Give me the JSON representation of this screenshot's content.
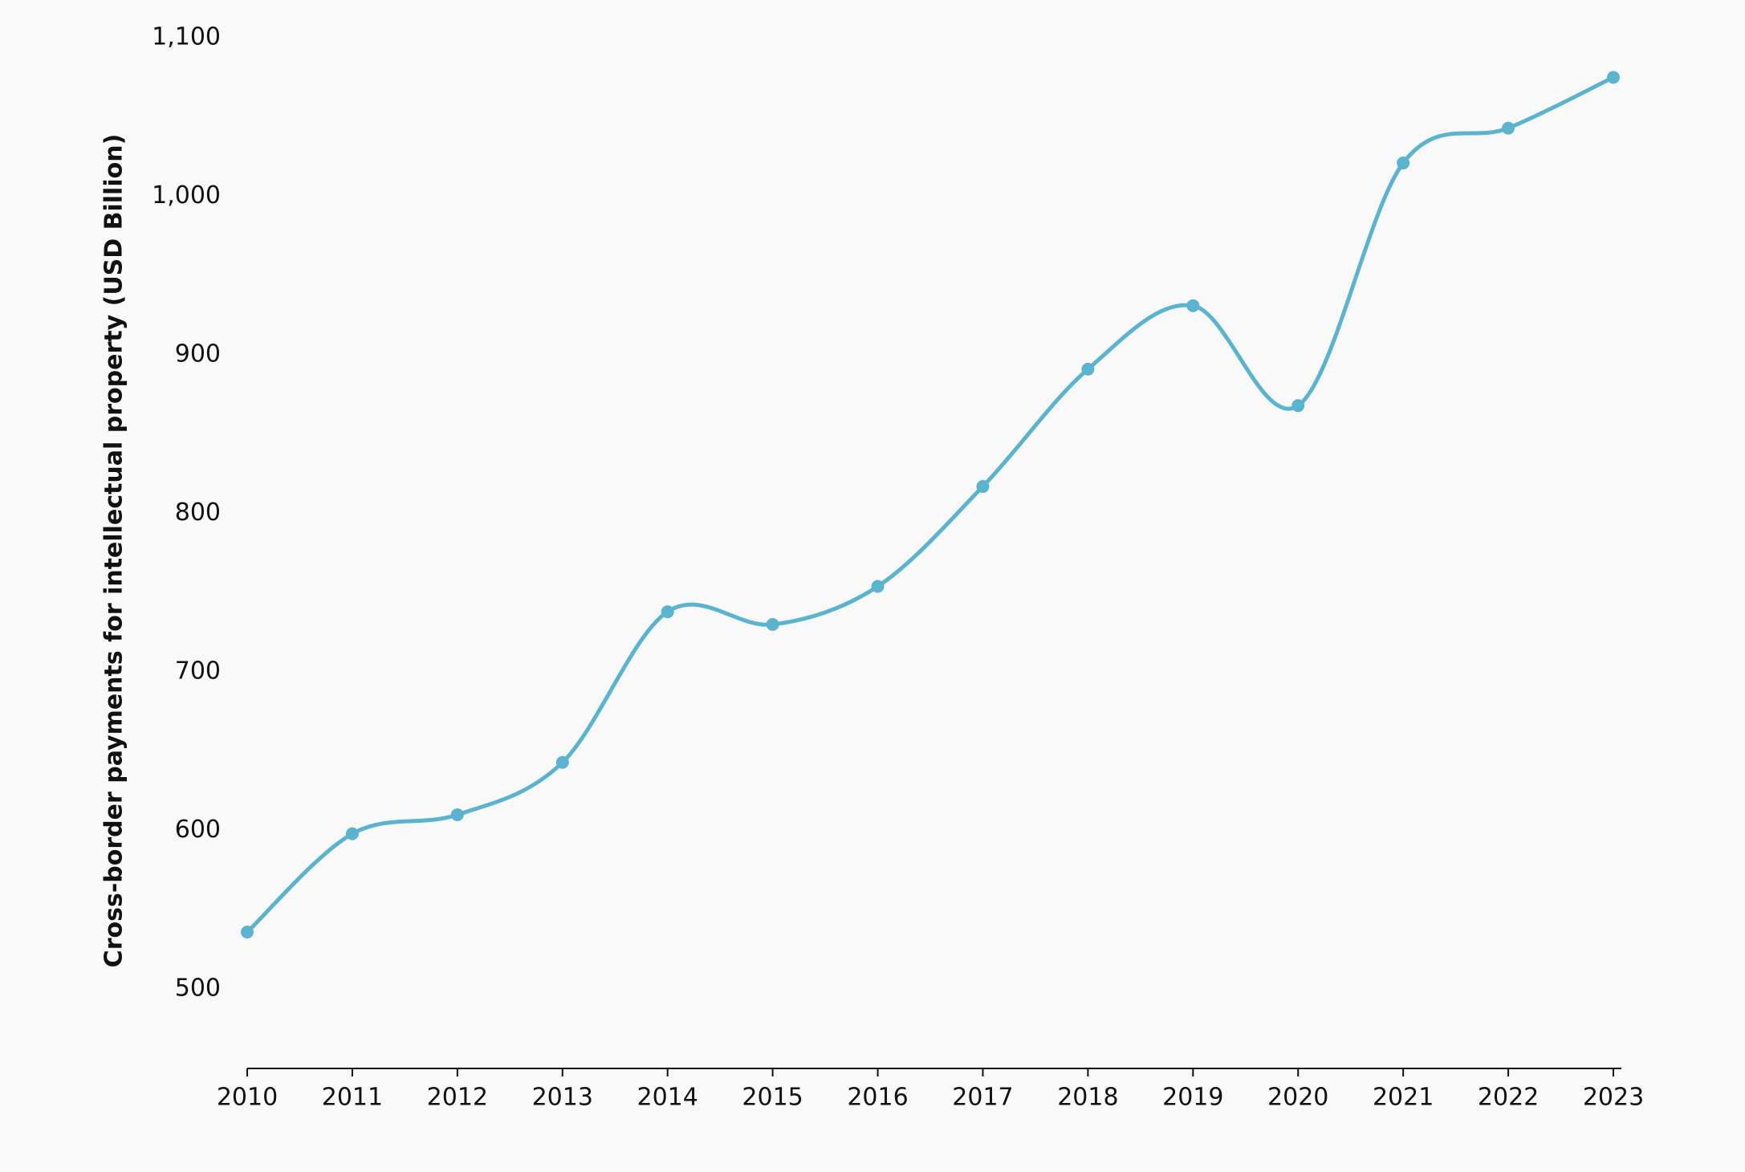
{
  "chart_data": {
    "type": "line",
    "y_label": "Cross-border payments for intellectual property (USD Billion)",
    "x": [
      2010,
      2011,
      2012,
      2013,
      2014,
      2015,
      2016,
      2017,
      2018,
      2019,
      2020,
      2021,
      2022,
      2023
    ],
    "series": [
      {
        "color": "#5ab4d0",
        "values": [
          536,
          598,
          610,
          643,
          738,
          730,
          754,
          817,
          891,
          931,
          868,
          1021,
          1043,
          1075
        ]
      }
    ],
    "xlim": [
      2010,
      2023
    ],
    "xticks": [
      2010,
      2011,
      2012,
      2013,
      2014,
      2015,
      2016,
      2017,
      2018,
      2019,
      2020,
      2021,
      2022,
      2023
    ],
    "ylim": [
      450,
      1100
    ],
    "yticks": [
      500,
      600,
      700,
      800,
      900,
      {
        "value": 1000,
        "label": "1,000"
      },
      {
        "value": 1100,
        "label": "1,100"
      }
    ],
    "grid": false
  }
}
